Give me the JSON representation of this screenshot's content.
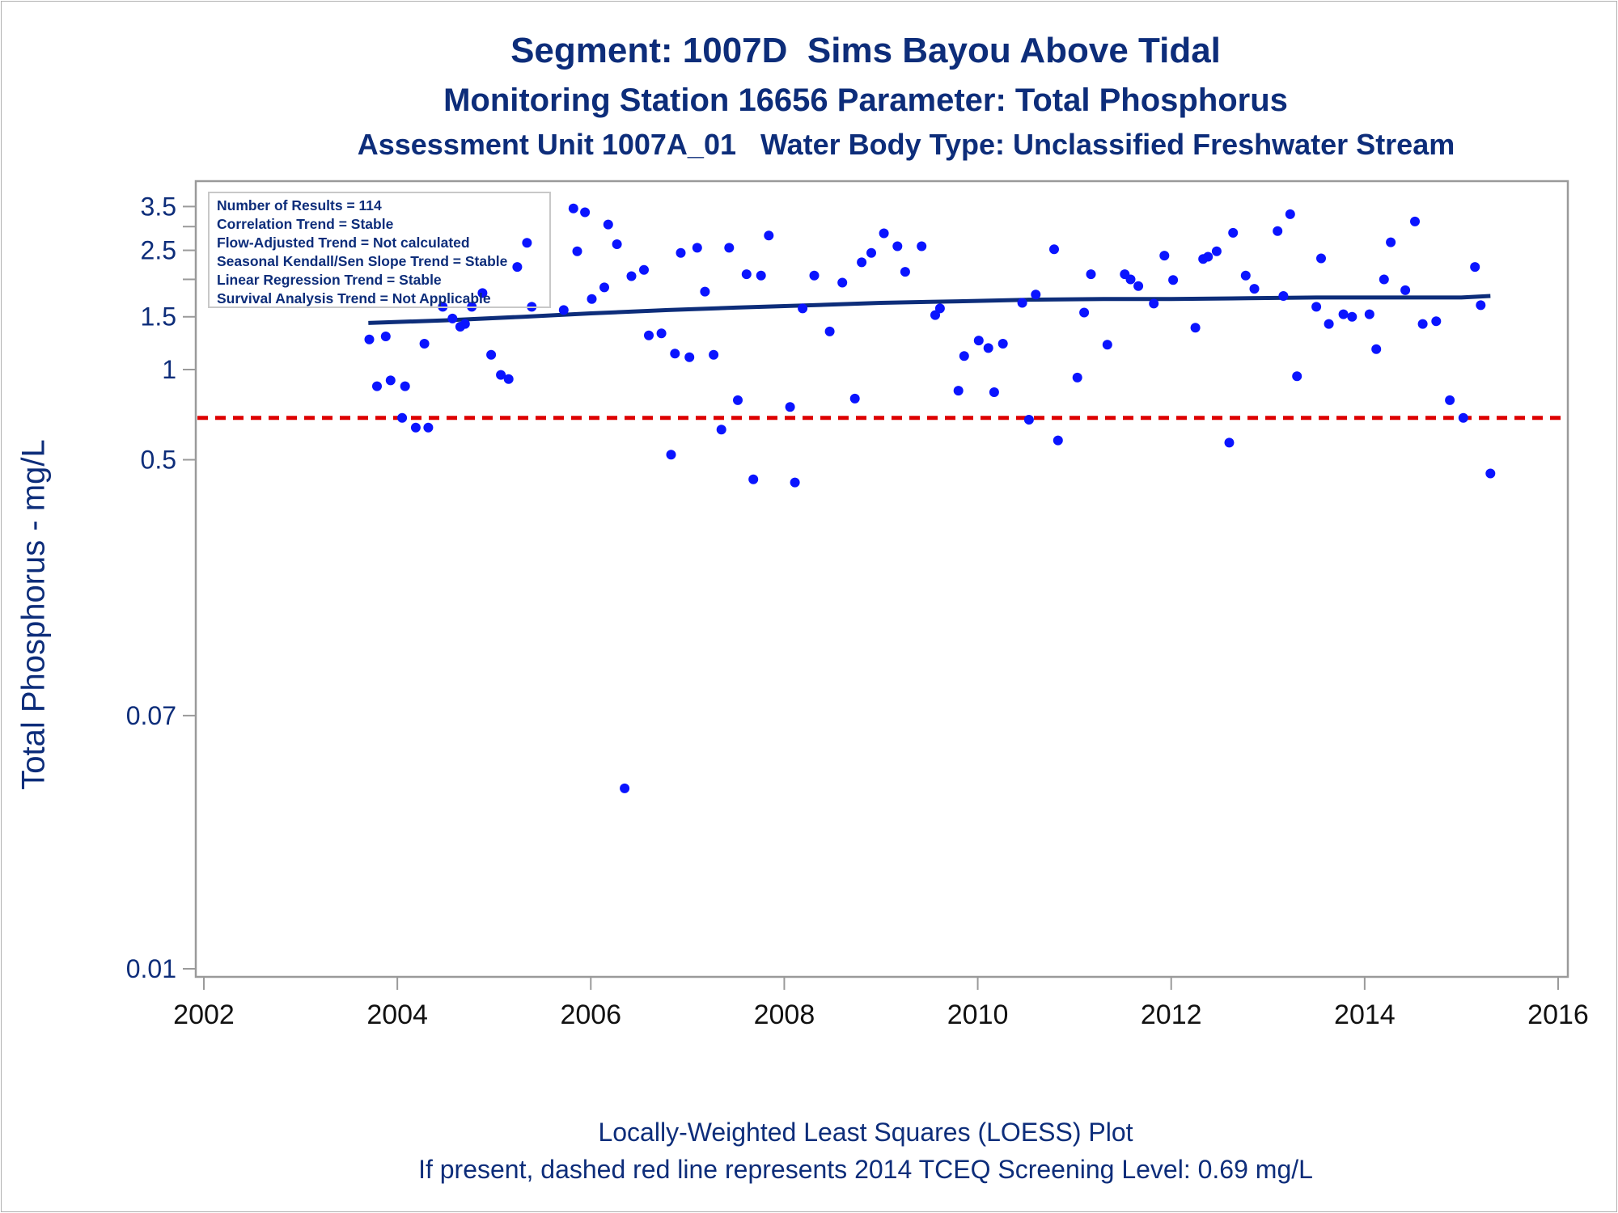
{
  "chart_data": {
    "type": "scatter",
    "title": "Segment: 1007D  Sims Bayou Above Tidal",
    "subtitle": "Monitoring Station 16656 Parameter: Total Phosphorus",
    "subtitle2": "Assessment Unit 1007A_01   Water Body Type: Unclassified Freshwater Stream",
    "ylabel": "Total Phosphorus - mg/L",
    "xlabel": "",
    "footnote1": "Locally-Weighted Least Squares (LOESS) Plot",
    "footnote2": "If present, dashed red line represents 2014 TCEQ Screening Level: 0.69 mg/L",
    "y_scale": "log",
    "xlim": [
      2002,
      2016
    ],
    "ylim": [
      0.01,
      3.9
    ],
    "x_ticks": [
      2002,
      2004,
      2006,
      2008,
      2010,
      2012,
      2014,
      2016
    ],
    "y_ticks": [
      0.01,
      0.07,
      0.5,
      1,
      1.5,
      2.5,
      3.5
    ],
    "y_tick_labels": [
      "0.01",
      "0.07",
      "0.5",
      "1",
      "1.5",
      "2.5",
      "3.5"
    ],
    "y_minor_ticks": [
      2,
      3
    ],
    "grid": false,
    "legend_position": "top-left",
    "legend_lines": [
      "Number of Results = 114",
      "Correlation Trend = Stable",
      "Flow-Adjusted Trend = Not calculated",
      "Seasonal Kendall/Sen Slope Trend = Stable",
      "Linear Regression Trend = Stable",
      "Survival Analysis Trend = Not Applicable"
    ],
    "screening_level": 0.69,
    "colors": {
      "points": "#0a14ff",
      "trend": "#0d2d7a",
      "screening": "#dd0000",
      "text": "#0d2d7a"
    },
    "series": [
      {
        "name": "Total Phosphorus",
        "kind": "points",
        "points": [
          [
            2003.71,
            1.26
          ],
          [
            2003.79,
            0.88
          ],
          [
            2003.88,
            1.29
          ],
          [
            2003.93,
            0.92
          ],
          [
            2004.05,
            0.69
          ],
          [
            2004.08,
            0.88
          ],
          [
            2004.19,
            0.64
          ],
          [
            2004.28,
            1.22
          ],
          [
            2004.32,
            0.64
          ],
          [
            2004.47,
            1.62
          ],
          [
            2004.57,
            1.48
          ],
          [
            2004.65,
            1.39
          ],
          [
            2004.7,
            1.42
          ],
          [
            2004.77,
            1.62
          ],
          [
            2004.88,
            1.8
          ],
          [
            2004.97,
            1.12
          ],
          [
            2005.07,
            0.96
          ],
          [
            2005.15,
            0.93
          ],
          [
            2005.24,
            2.2
          ],
          [
            2005.34,
            2.65
          ],
          [
            2005.39,
            1.62
          ],
          [
            2005.72,
            1.58
          ],
          [
            2005.82,
            3.45
          ],
          [
            2005.86,
            2.48
          ],
          [
            2005.94,
            3.35
          ],
          [
            2006.01,
            1.72
          ],
          [
            2006.14,
            1.88
          ],
          [
            2006.18,
            3.05
          ],
          [
            2006.27,
            2.62
          ],
          [
            2006.35,
            0.04
          ],
          [
            2006.42,
            2.05
          ],
          [
            2006.55,
            2.15
          ],
          [
            2006.6,
            1.3
          ],
          [
            2006.73,
            1.32
          ],
          [
            2006.83,
            0.52
          ],
          [
            2006.87,
            1.13
          ],
          [
            2006.93,
            2.45
          ],
          [
            2007.02,
            1.1
          ],
          [
            2007.1,
            2.55
          ],
          [
            2007.18,
            1.82
          ],
          [
            2007.27,
            1.12
          ],
          [
            2007.35,
            0.63
          ],
          [
            2007.43,
            2.55
          ],
          [
            2007.52,
            0.79
          ],
          [
            2007.61,
            2.08
          ],
          [
            2007.68,
            0.43
          ],
          [
            2007.76,
            2.06
          ],
          [
            2007.84,
            2.8
          ],
          [
            2008.06,
            0.75
          ],
          [
            2008.11,
            0.42
          ],
          [
            2008.19,
            1.6
          ],
          [
            2008.31,
            2.06
          ],
          [
            2008.47,
            1.34
          ],
          [
            2008.6,
            1.95
          ],
          [
            2008.73,
            0.8
          ],
          [
            2008.8,
            2.28
          ],
          [
            2008.9,
            2.45
          ],
          [
            2009.03,
            2.85
          ],
          [
            2009.17,
            2.58
          ],
          [
            2009.25,
            2.12
          ],
          [
            2009.42,
            2.58
          ],
          [
            2009.56,
            1.52
          ],
          [
            2009.61,
            1.6
          ],
          [
            2009.8,
            0.85
          ],
          [
            2009.86,
            1.11
          ],
          [
            2010.01,
            1.25
          ],
          [
            2010.11,
            1.18
          ],
          [
            2010.17,
            0.84
          ],
          [
            2010.26,
            1.22
          ],
          [
            2010.46,
            1.67
          ],
          [
            2010.53,
            0.68
          ],
          [
            2010.6,
            1.78
          ],
          [
            2010.79,
            2.52
          ],
          [
            2010.83,
            0.58
          ],
          [
            2011.03,
            0.94
          ],
          [
            2011.1,
            1.55
          ],
          [
            2011.17,
            2.08
          ],
          [
            2011.34,
            1.21
          ],
          [
            2011.52,
            2.08
          ],
          [
            2011.58,
            2.0
          ],
          [
            2011.66,
            1.9
          ],
          [
            2011.82,
            1.66
          ],
          [
            2011.93,
            2.4
          ],
          [
            2012.02,
            1.99
          ],
          [
            2012.25,
            1.38
          ],
          [
            2012.33,
            2.34
          ],
          [
            2012.38,
            2.38
          ],
          [
            2012.47,
            2.48
          ],
          [
            2012.6,
            0.57
          ],
          [
            2012.64,
            2.86
          ],
          [
            2012.77,
            2.06
          ],
          [
            2012.86,
            1.86
          ],
          [
            2013.1,
            2.9
          ],
          [
            2013.16,
            1.76
          ],
          [
            2013.23,
            3.3
          ],
          [
            2013.3,
            0.95
          ],
          [
            2013.5,
            1.62
          ],
          [
            2013.55,
            2.35
          ],
          [
            2013.63,
            1.42
          ],
          [
            2013.78,
            1.53
          ],
          [
            2013.87,
            1.5
          ],
          [
            2014.05,
            1.53
          ],
          [
            2014.12,
            1.17
          ],
          [
            2014.2,
            2.0
          ],
          [
            2014.27,
            2.66
          ],
          [
            2014.42,
            1.84
          ],
          [
            2014.52,
            3.12
          ],
          [
            2014.6,
            1.42
          ],
          [
            2014.74,
            1.45
          ],
          [
            2014.88,
            0.79
          ],
          [
            2015.02,
            0.69
          ],
          [
            2015.14,
            2.2
          ],
          [
            2015.2,
            1.64
          ],
          [
            2015.3,
            0.45
          ]
        ]
      },
      {
        "name": "LOESS",
        "kind": "line",
        "points": [
          [
            2003.7,
            1.43
          ],
          [
            2004.5,
            1.46
          ],
          [
            2005.3,
            1.5
          ],
          [
            2006.0,
            1.54
          ],
          [
            2006.8,
            1.58
          ],
          [
            2007.5,
            1.61
          ],
          [
            2008.3,
            1.64
          ],
          [
            2009.0,
            1.67
          ],
          [
            2009.8,
            1.69
          ],
          [
            2010.5,
            1.71
          ],
          [
            2011.3,
            1.72
          ],
          [
            2012.0,
            1.72
          ],
          [
            2012.8,
            1.73
          ],
          [
            2013.5,
            1.74
          ],
          [
            2014.3,
            1.74
          ],
          [
            2015.0,
            1.74
          ],
          [
            2015.3,
            1.76
          ]
        ]
      }
    ]
  }
}
